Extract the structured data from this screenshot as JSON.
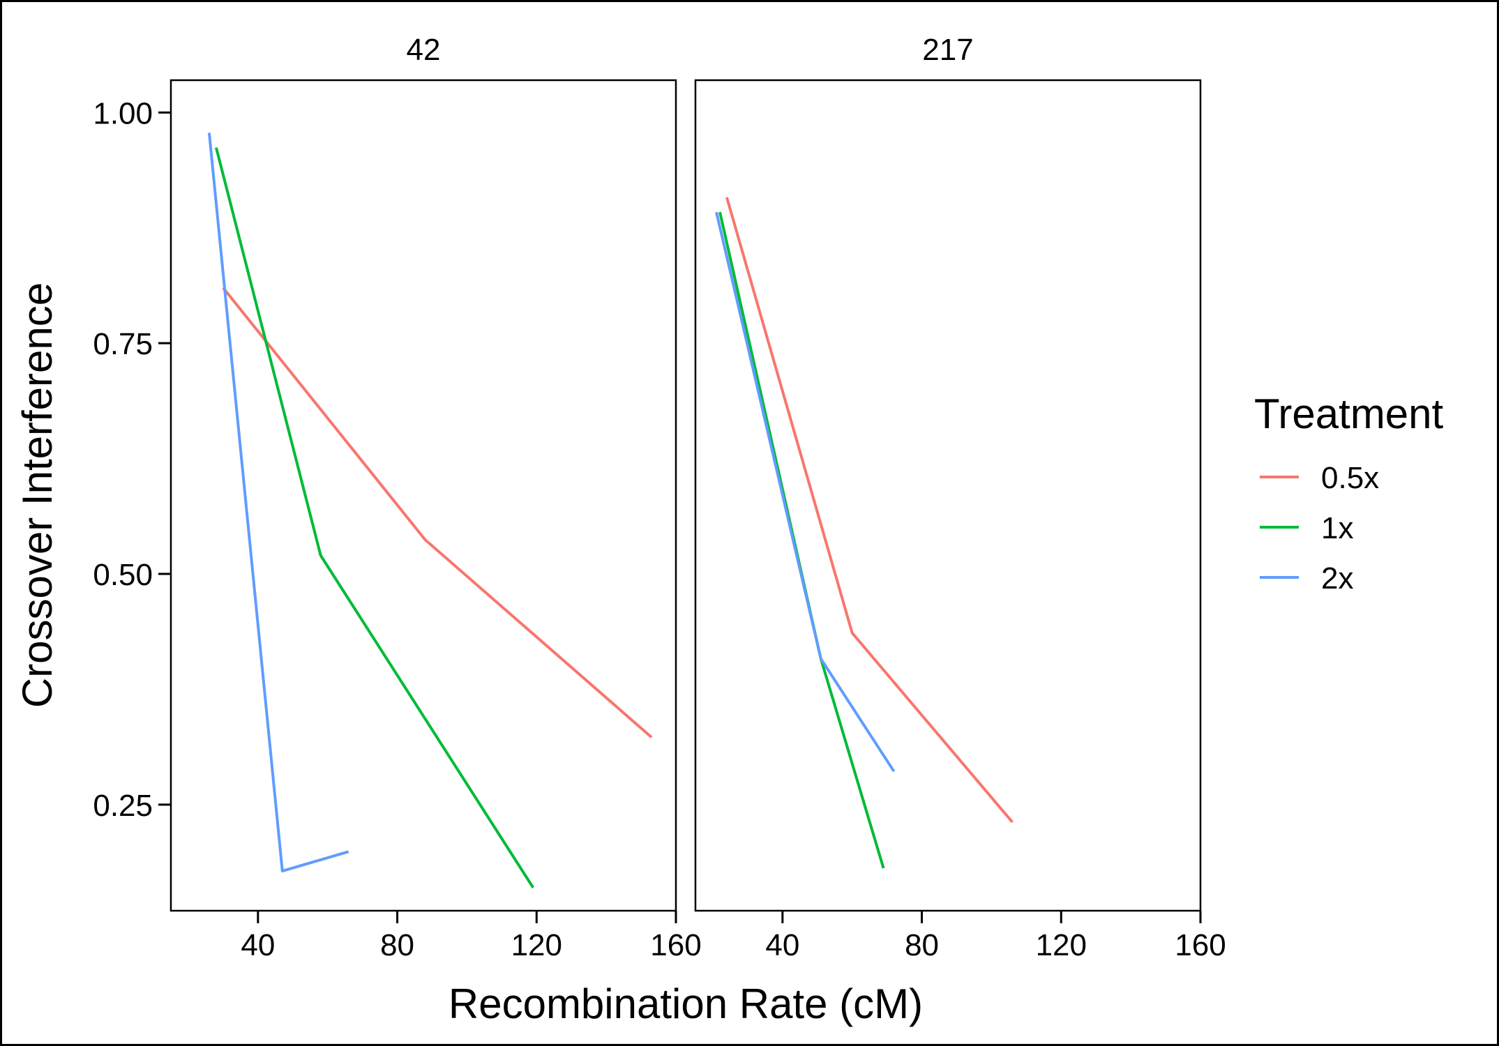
{
  "chart_data": {
    "type": "line",
    "xlabel": "Recombination Rate (cM)",
    "ylabel": "Crossover Interference",
    "xlim": [
      15,
      160
    ],
    "ylim": [
      0.135,
      1.035
    ],
    "x_ticks": [
      40,
      80,
      120,
      160
    ],
    "y_ticks": [
      0.25,
      0.5,
      0.75,
      1.0
    ],
    "y_tick_labels": [
      "0.25",
      "0.50",
      "0.75",
      "1.00"
    ],
    "grid": false,
    "legend": {
      "title": "Treatment",
      "position": "right",
      "entries": [
        {
          "label": "0.5x",
          "color": "#F8766D"
        },
        {
          "label": "1x",
          "color": "#00BA38"
        },
        {
          "label": "2x",
          "color": "#619CFF"
        }
      ]
    },
    "panels": [
      {
        "title": "42",
        "series": [
          {
            "name": "0.5x",
            "color": "#F8766D",
            "points": [
              [
                30,
                0.81
              ],
              [
                88,
                0.537
              ],
              [
                153,
                0.323
              ]
            ]
          },
          {
            "name": "1x",
            "color": "#00BA38",
            "points": [
              [
                28,
                0.962
              ],
              [
                58,
                0.52
              ],
              [
                119,
                0.16
              ]
            ]
          },
          {
            "name": "2x",
            "color": "#619CFF",
            "points": [
              [
                26,
                0.978
              ],
              [
                47,
                0.178
              ],
              [
                66,
                0.199
              ]
            ]
          }
        ]
      },
      {
        "title": "217",
        "series": [
          {
            "name": "0.5x",
            "color": "#F8766D",
            "points": [
              [
                24,
                0.908
              ],
              [
                60,
                0.436
              ],
              [
                106,
                0.231
              ]
            ]
          },
          {
            "name": "1x",
            "color": "#00BA38",
            "points": [
              [
                22,
                0.892
              ],
              [
                51,
                0.408
              ],
              [
                69,
                0.181
              ]
            ]
          },
          {
            "name": "2x",
            "color": "#619CFF",
            "points": [
              [
                21,
                0.892
              ],
              [
                51,
                0.408
              ],
              [
                72,
                0.286
              ]
            ]
          }
        ]
      }
    ]
  }
}
